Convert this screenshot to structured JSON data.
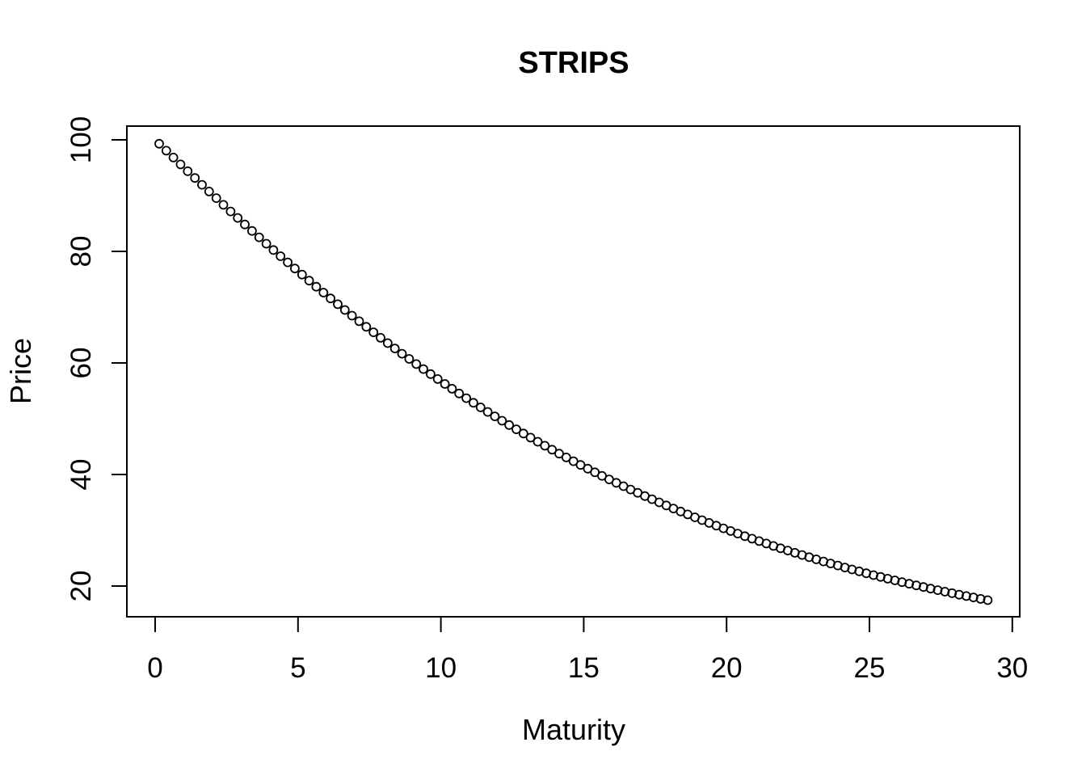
{
  "chart_data": {
    "type": "scatter",
    "title": "STRIPS",
    "xlabel": "Maturity",
    "ylabel": "Price",
    "marker": "open-circle",
    "marker_color": "#000000",
    "background": "#ffffff",
    "grid": false,
    "legend": "none",
    "x_ticks": [
      0,
      5,
      10,
      15,
      20,
      25,
      30
    ],
    "y_ticks": [
      20,
      40,
      60,
      80,
      100
    ],
    "xlim": [
      -0.99,
      30.26
    ],
    "ylim": [
      14.49,
      102.46
    ],
    "x": [
      0.14,
      0.39,
      0.64,
      0.89,
      1.14,
      1.39,
      1.64,
      1.89,
      2.14,
      2.39,
      2.64,
      2.89,
      3.14,
      3.39,
      3.64,
      3.89,
      4.14,
      4.39,
      4.64,
      4.89,
      5.14,
      5.39,
      5.64,
      5.89,
      6.14,
      6.39,
      6.64,
      6.89,
      7.14,
      7.39,
      7.64,
      7.89,
      8.14,
      8.39,
      8.64,
      8.89,
      9.14,
      9.39,
      9.64,
      9.89,
      10.14,
      10.39,
      10.64,
      10.89,
      11.14,
      11.39,
      11.64,
      11.89,
      12.14,
      12.39,
      12.64,
      12.89,
      13.14,
      13.39,
      13.64,
      13.89,
      14.14,
      14.39,
      14.64,
      14.89,
      15.14,
      15.39,
      15.64,
      15.89,
      16.14,
      16.39,
      16.64,
      16.89,
      17.14,
      17.39,
      17.64,
      17.89,
      18.14,
      18.39,
      18.64,
      18.89,
      19.14,
      19.39,
      19.64,
      19.89,
      20.14,
      20.39,
      20.64,
      20.89,
      21.14,
      21.39,
      21.64,
      21.89,
      22.14,
      22.39,
      22.64,
      22.89,
      23.14,
      23.39,
      23.64,
      23.89,
      24.14,
      24.39,
      24.64,
      24.89,
      25.14,
      25.39,
      25.64,
      25.89,
      26.14,
      26.39,
      26.64,
      26.89,
      27.14,
      27.39,
      27.64,
      27.89,
      28.14,
      28.39,
      28.64,
      28.89,
      29.14
    ],
    "y": [
      99.3,
      98.06,
      96.82,
      95.59,
      94.37,
      93.15,
      91.94,
      90.73,
      89.54,
      88.35,
      87.16,
      85.99,
      84.82,
      83.67,
      82.52,
      81.38,
      80.25,
      79.13,
      78.02,
      76.92,
      75.83,
      74.75,
      73.67,
      72.61,
      71.56,
      70.52,
      69.49,
      68.48,
      67.47,
      66.47,
      65.49,
      64.51,
      63.55,
      62.59,
      61.65,
      60.72,
      59.8,
      58.89,
      57.99,
      57.11,
      56.23,
      55.37,
      54.52,
      53.68,
      52.85,
      52.03,
      51.22,
      50.42,
      49.64,
      48.86,
      48.1,
      47.34,
      46.6,
      45.87,
      45.15,
      44.44,
      43.74,
      43.05,
      42.37,
      41.7,
      41.04,
      40.39,
      39.75,
      39.12,
      38.51,
      37.9,
      37.3,
      36.71,
      36.13,
      35.56,
      35.0,
      34.44,
      33.9,
      33.36,
      32.84,
      32.32,
      31.81,
      31.31,
      30.82,
      30.34,
      29.87,
      29.4,
      28.94,
      28.49,
      28.05,
      27.62,
      27.19,
      26.77,
      26.36,
      25.95,
      25.56,
      25.17,
      24.78,
      24.41,
      24.04,
      23.68,
      23.32,
      22.97,
      22.63,
      22.29,
      21.96,
      21.64,
      21.32,
      21.01,
      20.7,
      20.4,
      20.11,
      19.82,
      19.54,
      19.26,
      18.98,
      18.72,
      18.45,
      18.2,
      17.95,
      17.7,
      17.46
    ]
  }
}
